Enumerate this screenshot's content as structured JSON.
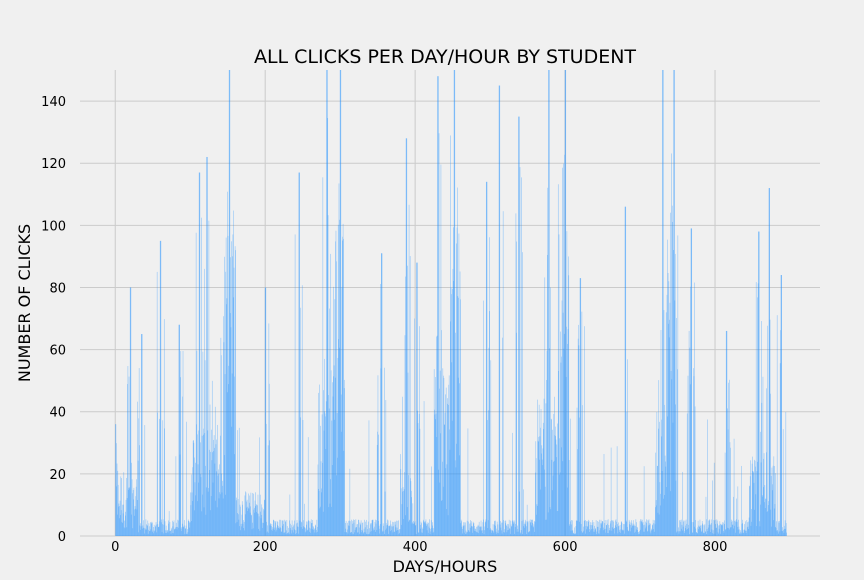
{
  "chart_data": {
    "type": "bar",
    "title": "ALL CLICKS PER DAY/HOUR BY STUDENT",
    "xlabel": "DAYS/HOURS",
    "ylabel": "NUMBER OF CLICKS",
    "xlim": [
      -47,
      940
    ],
    "ylim": [
      0,
      150
    ],
    "xticks": [
      0,
      200,
      400,
      600,
      800
    ],
    "yticks": [
      0,
      20,
      40,
      60,
      80,
      100,
      120,
      140
    ],
    "grid": true,
    "bar_color": "#1e90ff",
    "background": "#f0f0f0",
    "grid_color": "#cbcbcb",
    "x_start": 0,
    "x_end": 895,
    "peaks": [
      {
        "x": 0,
        "y": 36
      },
      {
        "x": 20,
        "y": 80
      },
      {
        "x": 35,
        "y": 65
      },
      {
        "x": 60,
        "y": 95
      },
      {
        "x": 85,
        "y": 68
      },
      {
        "x": 112,
        "y": 117
      },
      {
        "x": 122,
        "y": 122
      },
      {
        "x": 152,
        "y": 150
      },
      {
        "x": 200,
        "y": 80
      },
      {
        "x": 245,
        "y": 117
      },
      {
        "x": 282,
        "y": 150
      },
      {
        "x": 300,
        "y": 150
      },
      {
        "x": 355,
        "y": 91
      },
      {
        "x": 388,
        "y": 128
      },
      {
        "x": 402,
        "y": 88
      },
      {
        "x": 430,
        "y": 148
      },
      {
        "x": 452,
        "y": 150
      },
      {
        "x": 495,
        "y": 114
      },
      {
        "x": 512,
        "y": 145
      },
      {
        "x": 538,
        "y": 135
      },
      {
        "x": 578,
        "y": 150
      },
      {
        "x": 600,
        "y": 150
      },
      {
        "x": 620,
        "y": 83
      },
      {
        "x": 680,
        "y": 106
      },
      {
        "x": 730,
        "y": 150
      },
      {
        "x": 745,
        "y": 150
      },
      {
        "x": 768,
        "y": 99
      },
      {
        "x": 815,
        "y": 66
      },
      {
        "x": 858,
        "y": 98
      },
      {
        "x": 872,
        "y": 112
      },
      {
        "x": 888,
        "y": 84
      }
    ],
    "dense_regions": [
      {
        "x0": 0,
        "x1": 30,
        "base": 12
      },
      {
        "x0": 100,
        "x1": 140,
        "base": 20
      },
      {
        "x0": 140,
        "x1": 160,
        "base": 55
      },
      {
        "x0": 160,
        "x1": 200,
        "base": 8
      },
      {
        "x0": 270,
        "x1": 290,
        "base": 30
      },
      {
        "x0": 290,
        "x1": 305,
        "base": 60
      },
      {
        "x0": 380,
        "x1": 395,
        "base": 15
      },
      {
        "x0": 425,
        "x1": 445,
        "base": 30
      },
      {
        "x0": 445,
        "x1": 460,
        "base": 65
      },
      {
        "x0": 560,
        "x1": 590,
        "base": 25
      },
      {
        "x0": 590,
        "x1": 605,
        "base": 70
      },
      {
        "x0": 720,
        "x1": 735,
        "base": 25
      },
      {
        "x0": 735,
        "x1": 748,
        "base": 60
      },
      {
        "x0": 845,
        "x1": 880,
        "base": 15
      }
    ]
  }
}
